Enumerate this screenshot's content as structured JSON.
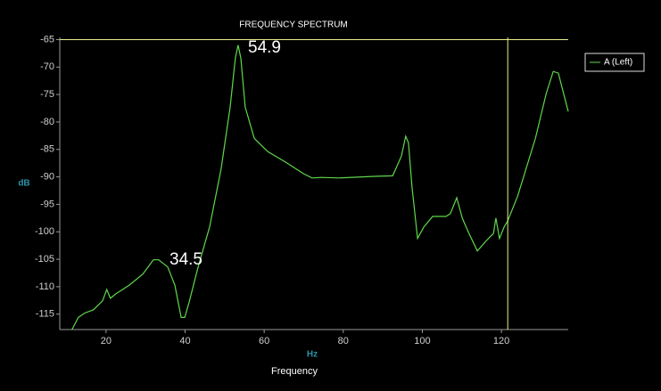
{
  "chart_data": {
    "type": "line",
    "title": "FREQUENCY SPECTRUM",
    "x_label": "Hz",
    "y_label": "dB",
    "footer": "Frequency",
    "xlim": [
      8.3,
      136.9
    ],
    "ylim": [
      -117.8,
      -64.6
    ],
    "xticks": [
      20,
      40,
      60,
      80,
      100,
      120
    ],
    "yticks": [
      -65,
      -70,
      -75,
      -80,
      -85,
      -90,
      -95,
      -100,
      -105,
      -110,
      -115
    ],
    "cursor_x": 121.6,
    "cursor_y": -65,
    "cursor_color": "#e8f08a",
    "annotations": [
      "54.9",
      "34.5"
    ],
    "legend": "right",
    "series": [
      {
        "name": "A (Left)",
        "color": "#5fd84a",
        "x": [
          11.4,
          13.0,
          14.6,
          16.8,
          19.1,
          20.2,
          21.1,
          22.5,
          25.9,
          29.3,
          32.0,
          33.3,
          35.6,
          37.4,
          39.0,
          39.9,
          41.0,
          43.3,
          46.2,
          49.1,
          51.4,
          52.7,
          53.4,
          54.1,
          55.2,
          57.5,
          60.9,
          65.4,
          69.9,
          72.1,
          74.4,
          78.9,
          87.9,
          92.5,
          94.7,
          95.8,
          96.5,
          97.4,
          98.8,
          100.4,
          102.6,
          106.0,
          107.1,
          108.7,
          110.1,
          111.6,
          113.9,
          116.2,
          118.0,
          118.6,
          119.5,
          120.7,
          121.6,
          124.1,
          128.6,
          131.3,
          133.1,
          134.4,
          136.9
        ],
        "values": [
          -117.8,
          -115.6,
          -114.8,
          -114.2,
          -112.6,
          -110.5,
          -112.1,
          -111.3,
          -109.7,
          -107.7,
          -105.1,
          -105.1,
          -106.4,
          -109.7,
          -115.6,
          -115.6,
          -112.9,
          -106.4,
          -99.1,
          -88.6,
          -77.3,
          -68.4,
          -66.0,
          -68.4,
          -77.3,
          -83.0,
          -85.4,
          -87.3,
          -89.4,
          -90.2,
          -90.1,
          -90.2,
          -89.9,
          -89.8,
          -86.2,
          -82.6,
          -83.8,
          -91.9,
          -101.2,
          -99.1,
          -97.2,
          -97.2,
          -96.7,
          -93.8,
          -97.5,
          -100.0,
          -103.5,
          -101.6,
          -100.3,
          -97.5,
          -101.2,
          -99.1,
          -98.0,
          -93.5,
          -83.0,
          -74.9,
          -70.8,
          -71.1,
          -78.1
        ]
      }
    ]
  }
}
